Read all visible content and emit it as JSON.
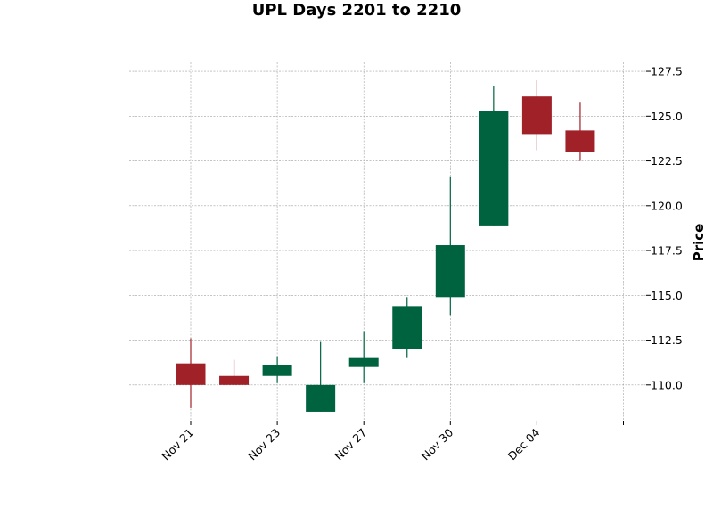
{
  "chart_data": {
    "type": "candlestick",
    "title": "UPL Days 2201 to 2210",
    "xlabel": "",
    "ylabel": "Price",
    "ylim": [
      108.0,
      128.0
    ],
    "y_ticks": [
      "110.0",
      "112.5",
      "115.0",
      "117.5",
      "120.0",
      "122.5",
      "125.0",
      "127.5"
    ],
    "x_tick_labels": [
      "Nov 21",
      "Nov 23",
      "Nov 27",
      "Nov 30",
      "Dec 04",
      ""
    ],
    "grid": true,
    "y_axis_side": "right",
    "colors": {
      "up": "#006340",
      "down": "#a02128"
    },
    "candles": [
      {
        "open": 111.2,
        "high": 112.6,
        "low": 108.7,
        "close": 110.0
      },
      {
        "open": 110.5,
        "high": 111.4,
        "low": 110.0,
        "close": 110.0
      },
      {
        "open": 110.5,
        "high": 111.6,
        "low": 110.1,
        "close": 111.1
      },
      {
        "open": 108.5,
        "high": 112.4,
        "low": 108.5,
        "close": 110.0
      },
      {
        "open": 111.0,
        "high": 113.0,
        "low": 110.1,
        "close": 111.5
      },
      {
        "open": 112.0,
        "high": 114.9,
        "low": 111.5,
        "close": 114.4
      },
      {
        "open": 114.9,
        "high": 121.6,
        "low": 113.9,
        "close": 117.8
      },
      {
        "open": 118.9,
        "high": 126.7,
        "low": 118.9,
        "close": 125.3
      },
      {
        "open": 126.1,
        "high": 127.0,
        "low": 123.1,
        "close": 124.0
      },
      {
        "open": 124.2,
        "high": 125.8,
        "low": 122.5,
        "close": 123.0
      }
    ]
  }
}
